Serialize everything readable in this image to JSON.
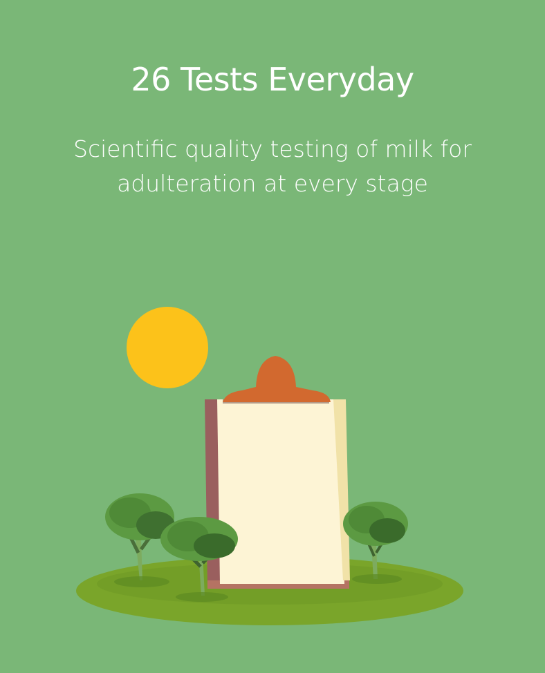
{
  "card": {
    "title": "26 Tests Everyday",
    "subtitle_line1": "Scientific quality testing of milk for",
    "subtitle_line2": "adulteration at every stage"
  },
  "colors": {
    "background": "#7ab777",
    "sun": "#fcc21a",
    "clipboard_clip": "#d2692f",
    "paper": "#fdf4d5",
    "ground": "#7aa52a",
    "tree_foliage": "#4d8e3a"
  },
  "illustration": {
    "icons": [
      "sun-icon",
      "clipboard-icon",
      "tree-icon",
      "ground-icon"
    ]
  }
}
